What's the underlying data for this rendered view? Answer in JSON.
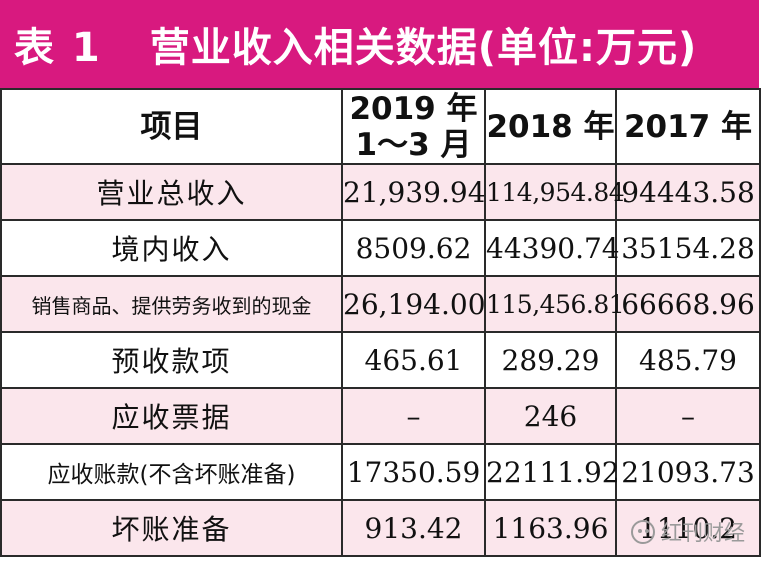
{
  "title": {
    "label": "表 1",
    "text": "营业收入相关数据(单位:万元)"
  },
  "table": {
    "headers": [
      "项目",
      "2019 年\n1～3 月",
      "2018 年",
      "2017 年"
    ],
    "rows": [
      {
        "item": "营业总收入",
        "y2019q1": "21,939.94",
        "y2018": "114,954.84",
        "y2017": "94443.58"
      },
      {
        "item": "境内收入",
        "y2019q1": "8509.62",
        "y2018": "44390.74",
        "y2017": "35154.28"
      },
      {
        "item": "销售商品、提供劳务收到的现金",
        "y2019q1": "26,194.00",
        "y2018": "115,456.81",
        "y2017": "66668.96"
      },
      {
        "item": "预收款项",
        "y2019q1": "465.61",
        "y2018": "289.29",
        "y2017": "485.79"
      },
      {
        "item": "应收票据",
        "y2019q1": "–",
        "y2018": "246",
        "y2017": "–"
      },
      {
        "item": "应收账款(不含坏账准备)",
        "y2019q1": "17350.59",
        "y2018": "22111.92",
        "y2017": "21093.73"
      },
      {
        "item": "坏账准备",
        "y2019q1": "913.42",
        "y2018": "1163.96",
        "y2017": "1110.2"
      }
    ]
  },
  "watermark": {
    "text": "红刊财经",
    "icon": "wechat-icon"
  },
  "colors": {
    "title_bg": "#d8197f",
    "row_pink": "#fbe6ec",
    "border": "#2a2a2a"
  }
}
